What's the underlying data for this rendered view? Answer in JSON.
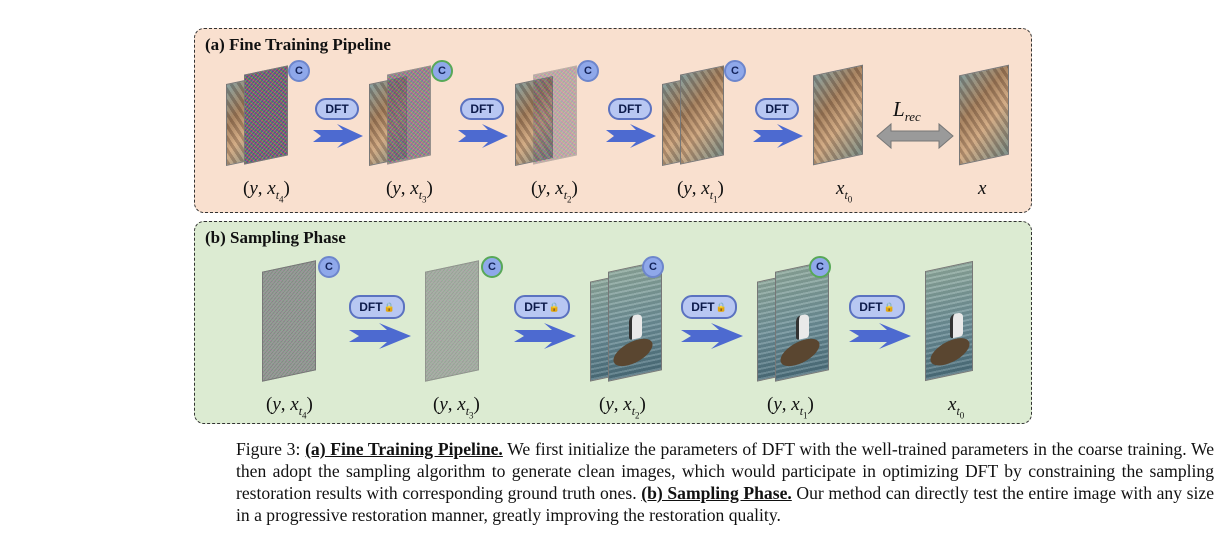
{
  "panel_a": {
    "title": "(a) Fine Training Pipeline",
    "dft_label": "DFT",
    "badge_label": "C",
    "loss_label_main": "L",
    "loss_label_sub": "rec",
    "labels": [
      {
        "base": "(y, x",
        "sub": "t",
        "subsub": "4",
        "close": ")"
      },
      {
        "base": "(y, x",
        "sub": "t",
        "subsub": "3",
        "close": ")"
      },
      {
        "base": "(y, x",
        "sub": "t",
        "subsub": "2",
        "close": ")"
      },
      {
        "base": "(y, x",
        "sub": "t",
        "subsub": "1",
        "close": ")"
      },
      {
        "base": "x",
        "sub": "t",
        "subsub": "0",
        "close": ""
      },
      {
        "base": "x",
        "sub": "",
        "subsub": "",
        "close": ""
      }
    ]
  },
  "panel_b": {
    "title": "(b) Sampling Phase",
    "dft_label": "DFT",
    "lock_icon": "lock-icon",
    "badge_label": "C",
    "labels": [
      {
        "base": "(y, x",
        "sub": "t",
        "subsub": "4",
        "close": ")"
      },
      {
        "base": "(y, x",
        "sub": "t",
        "subsub": "3",
        "close": ")"
      },
      {
        "base": "(y, x",
        "sub": "t",
        "subsub": "2",
        "close": ")"
      },
      {
        "base": "(y, x",
        "sub": "t",
        "subsub": "1",
        "close": ")"
      },
      {
        "base": "x",
        "sub": "t",
        "subsub": "0",
        "close": ""
      }
    ]
  },
  "caption": {
    "prefix": "Figure 3: ",
    "part_a_title": "(a) Fine Training Pipeline.",
    "part_a_text": " We first initialize the parameters of DFT with the well-trained parameters in the coarse training. We then adopt the sampling algorithm to generate clean images, which would participate in optimizing DFT by constraining the sampling restoration results with corresponding ground truth ones. ",
    "part_b_title": "(b) Sampling Phase.",
    "part_b_text": " Our method can directly test the entire image with any size in a progressive restoration manner, greatly improving the restoration quality."
  },
  "colors": {
    "panel_a_bg": "#f9e0cf",
    "panel_b_bg": "#dcebd2",
    "arrow_blue": "#4d6ad0",
    "badge_blue": "#8fa8ea",
    "loss_arrow_gray": "#9a9a9a"
  }
}
